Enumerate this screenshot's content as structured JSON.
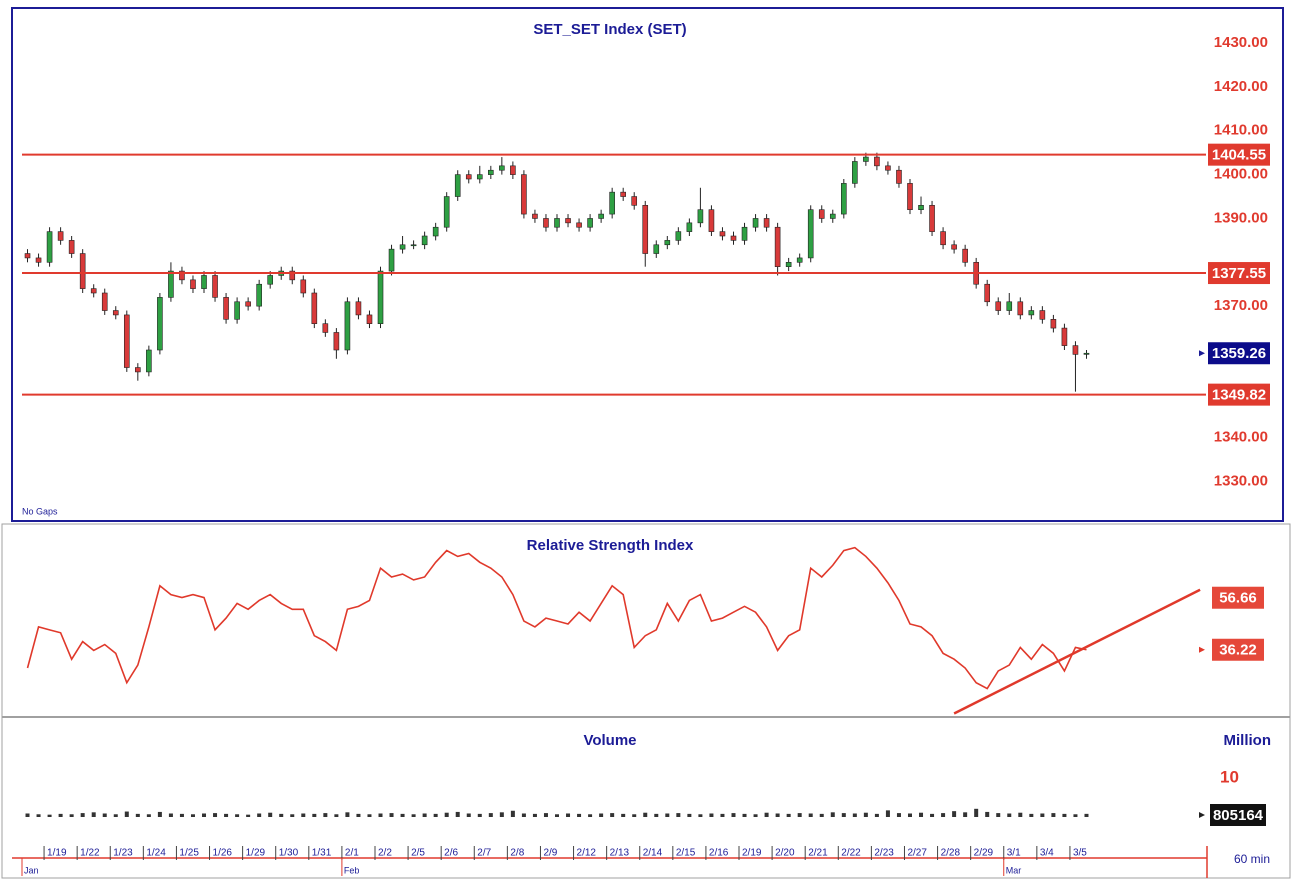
{
  "chart_data": [
    {
      "type": "candlestick",
      "title": "SET_SET Index (SET)",
      "annotation": "No Gaps",
      "up_color": "#2ea043",
      "down_color": "#d83a3a",
      "level_color": "#e03a2e",
      "ylim": [
        1321,
        1438
      ],
      "yticks": [
        {
          "value": 1430,
          "label": "1430.00"
        },
        {
          "value": 1420,
          "label": "1420.00"
        },
        {
          "value": 1410,
          "label": "1410.00"
        },
        {
          "value": 1400,
          "label": "1400.00"
        },
        {
          "value": 1390,
          "label": "1390.00"
        },
        {
          "value": 1370,
          "label": "1370.00"
        },
        {
          "value": 1340,
          "label": "1340.00"
        },
        {
          "value": 1330,
          "label": "1330.00"
        }
      ],
      "levels": [
        1404.55,
        1377.55,
        1349.82
      ],
      "open": [
        1382,
        1381,
        1380,
        1387,
        1385,
        1382,
        1374,
        1373,
        1369,
        1368,
        1356,
        1355,
        1360,
        1372,
        1378,
        1376,
        1374,
        1377,
        1372,
        1367,
        1371,
        1370,
        1375,
        1377,
        1378,
        1376,
        1373,
        1366,
        1364,
        1360,
        1371,
        1368,
        1366,
        1378,
        1383,
        1384,
        1384,
        1386,
        1388,
        1395,
        1400,
        1399,
        1400,
        1401,
        1402,
        1400,
        1391,
        1390,
        1388,
        1390,
        1389,
        1388,
        1390,
        1391,
        1396,
        1395,
        1393,
        1382,
        1384,
        1385,
        1387,
        1389,
        1392,
        1387,
        1386,
        1385,
        1388,
        1390,
        1388,
        1379,
        1380,
        1381,
        1392,
        1390,
        1391,
        1398,
        1403,
        1404,
        1402,
        1401,
        1398,
        1392,
        1393,
        1387,
        1384,
        1383,
        1380,
        1375,
        1371,
        1369,
        1371,
        1368,
        1369,
        1367,
        1365,
        1361,
        1359
      ],
      "high": [
        1383,
        1382,
        1388,
        1388,
        1386,
        1383,
        1375,
        1374,
        1370,
        1369,
        1357,
        1361,
        1373,
        1380,
        1379,
        1377,
        1378,
        1378,
        1373,
        1372,
        1372,
        1376,
        1378,
        1379,
        1379,
        1377,
        1374,
        1367,
        1365,
        1372,
        1372,
        1369,
        1379,
        1384,
        1386,
        1385,
        1387,
        1389,
        1396,
        1401,
        1401,
        1402,
        1402,
        1404,
        1403,
        1401,
        1392,
        1391,
        1391,
        1391,
        1390,
        1391,
        1392,
        1397,
        1397,
        1396,
        1394,
        1385,
        1386,
        1388,
        1390,
        1397,
        1393,
        1388,
        1387,
        1389,
        1391,
        1391,
        1389,
        1381,
        1382,
        1393,
        1393,
        1392,
        1399,
        1404,
        1405,
        1405,
        1403,
        1402,
        1399,
        1395,
        1394,
        1388,
        1385,
        1384,
        1381,
        1376,
        1372,
        1373,
        1372,
        1370,
        1370,
        1368,
        1366,
        1362,
        1360
      ],
      "low": [
        1380,
        1379,
        1379,
        1384,
        1381,
        1373,
        1372,
        1368,
        1367,
        1355,
        1353,
        1354,
        1359,
        1371,
        1375,
        1373,
        1373,
        1371,
        1366,
        1366,
        1369,
        1369,
        1374,
        1376,
        1375,
        1372,
        1365,
        1363,
        1358,
        1359,
        1367,
        1365,
        1365,
        1377,
        1382,
        1383,
        1383,
        1385,
        1387,
        1394,
        1398,
        1398,
        1399,
        1400,
        1399,
        1390,
        1389,
        1387,
        1387,
        1388,
        1387,
        1387,
        1389,
        1390,
        1394,
        1392,
        1379,
        1381,
        1383,
        1384,
        1386,
        1388,
        1386,
        1385,
        1384,
        1384,
        1387,
        1387,
        1377,
        1378,
        1379,
        1380,
        1389,
        1389,
        1390,
        1397,
        1402,
        1401,
        1400,
        1397,
        1391,
        1391,
        1386,
        1383,
        1382,
        1379,
        1374,
        1370,
        1368,
        1368,
        1367,
        1367,
        1366,
        1364,
        1360,
        1350.5,
        1358
      ],
      "close": [
        1381,
        1380,
        1387,
        1385,
        1382,
        1374,
        1373,
        1369,
        1368,
        1356,
        1355,
        1360,
        1372,
        1378,
        1376,
        1374,
        1377,
        1372,
        1367,
        1371,
        1370,
        1375,
        1377,
        1378,
        1376,
        1373,
        1366,
        1364,
        1360,
        1371,
        1368,
        1366,
        1378,
        1383,
        1384,
        1384,
        1386,
        1388,
        1395,
        1400,
        1399,
        1400,
        1401,
        1402,
        1400,
        1391,
        1390,
        1388,
        1390,
        1389,
        1388,
        1390,
        1391,
        1396,
        1395,
        1393,
        1382,
        1384,
        1385,
        1387,
        1389,
        1392,
        1387,
        1386,
        1385,
        1388,
        1390,
        1388,
        1379,
        1380,
        1381,
        1392,
        1390,
        1391,
        1398,
        1403,
        1404,
        1402,
        1401,
        1398,
        1392,
        1393,
        1387,
        1384,
        1383,
        1380,
        1375,
        1371,
        1369,
        1371,
        1368,
        1369,
        1367,
        1365,
        1361,
        1359,
        1359.26
      ]
    },
    {
      "type": "line",
      "title": "Relative Strength Index",
      "color": "#e0392b",
      "ylim": [
        14,
        77
      ],
      "values": [
        30,
        44,
        43,
        42,
        33,
        39,
        36,
        38,
        35,
        25,
        31,
        44,
        58,
        55,
        54,
        55,
        54,
        43,
        47,
        52,
        50,
        53,
        55,
        52,
        50,
        50,
        41,
        39,
        36,
        50,
        51,
        53,
        64,
        61,
        62,
        60,
        61,
        66,
        70,
        68,
        69,
        66,
        64,
        61,
        55,
        46,
        44,
        47,
        46,
        45,
        49,
        46,
        52,
        58,
        55,
        37,
        41,
        43,
        52,
        46,
        53,
        55,
        46,
        47,
        49,
        51,
        49,
        44,
        36,
        41,
        43,
        64,
        61,
        65,
        70,
        71,
        68,
        64,
        59,
        53,
        45,
        44,
        41,
        35,
        33,
        30,
        25,
        23,
        29,
        31,
        37,
        33,
        38,
        35,
        29,
        37,
        36.22
      ],
      "trendline": {
        "x": [
          84,
          106.3
        ],
        "values": [
          14.5,
          56.66
        ]
      }
    },
    {
      "type": "bar",
      "title": "Volume",
      "unit_label": "Million",
      "color": "#333333",
      "ylim": [
        0,
        10000000
      ],
      "yticks": [
        {
          "value": 10000000,
          "label": "10"
        }
      ],
      "values": [
        900000,
        700000,
        600000,
        800000,
        700000,
        1000000,
        1200000,
        900000,
        700000,
        1400000,
        800000,
        700000,
        1300000,
        900000,
        800000,
        700000,
        900000,
        1000000,
        800000,
        700000,
        600000,
        900000,
        1100000,
        800000,
        700000,
        900000,
        800000,
        1000000,
        700000,
        1200000,
        800000,
        700000,
        900000,
        1000000,
        800000,
        700000,
        900000,
        800000,
        1100000,
        1300000,
        900000,
        800000,
        1000000,
        1200000,
        1600000,
        900000,
        800000,
        1000000,
        700000,
        900000,
        800000,
        700000,
        900000,
        1000000,
        800000,
        700000,
        1100000,
        800000,
        900000,
        1000000,
        800000,
        700000,
        900000,
        800000,
        1000000,
        800000,
        700000,
        1100000,
        900000,
        800000,
        1000000,
        900000,
        800000,
        1200000,
        1000000,
        900000,
        1100000,
        800000,
        1700000,
        1000000,
        900000,
        1100000,
        800000,
        1000000,
        1500000,
        1200000,
        2100000,
        1300000,
        1000000,
        900000,
        1100000,
        800000,
        900000,
        1000000,
        800000,
        700000,
        805164
      ],
      "xlim": [
        0,
        97
      ],
      "xticks": [
        {
          "value": 2,
          "label": "1/19"
        },
        {
          "value": 5,
          "label": "1/22"
        },
        {
          "value": 8,
          "label": "1/23"
        },
        {
          "value": 11,
          "label": "1/24"
        },
        {
          "value": 14,
          "label": "1/25"
        },
        {
          "value": 17,
          "label": "1/26"
        },
        {
          "value": 20,
          "label": "1/29"
        },
        {
          "value": 23,
          "label": "1/30"
        },
        {
          "value": 26,
          "label": "1/31"
        },
        {
          "value": 29,
          "label": "2/1"
        },
        {
          "value": 32,
          "label": "2/2"
        },
        {
          "value": 35,
          "label": "2/5"
        },
        {
          "value": 38,
          "label": "2/6"
        },
        {
          "value": 41,
          "label": "2/7"
        },
        {
          "value": 44,
          "label": "2/8"
        },
        {
          "value": 47,
          "label": "2/9"
        },
        {
          "value": 50,
          "label": "2/12"
        },
        {
          "value": 53,
          "label": "2/13"
        },
        {
          "value": 56,
          "label": "2/14"
        },
        {
          "value": 59,
          "label": "2/15"
        },
        {
          "value": 62,
          "label": "2/16"
        },
        {
          "value": 65,
          "label": "2/19"
        },
        {
          "value": 68,
          "label": "2/20"
        },
        {
          "value": 71,
          "label": "2/21"
        },
        {
          "value": 74,
          "label": "2/22"
        },
        {
          "value": 77,
          "label": "2/23"
        },
        {
          "value": 80,
          "label": "2/27"
        },
        {
          "value": 83,
          "label": "2/28"
        },
        {
          "value": 86,
          "label": "2/29"
        },
        {
          "value": 89,
          "label": "3/1"
        },
        {
          "value": 92,
          "label": "3/4"
        },
        {
          "value": 95,
          "label": "3/5"
        }
      ],
      "month_ticks": [
        {
          "value": 0,
          "label": "Jan"
        },
        {
          "value": 29,
          "label": "Feb"
        },
        {
          "value": 89,
          "label": "Mar"
        }
      ],
      "interval_label": "60 min"
    }
  ]
}
